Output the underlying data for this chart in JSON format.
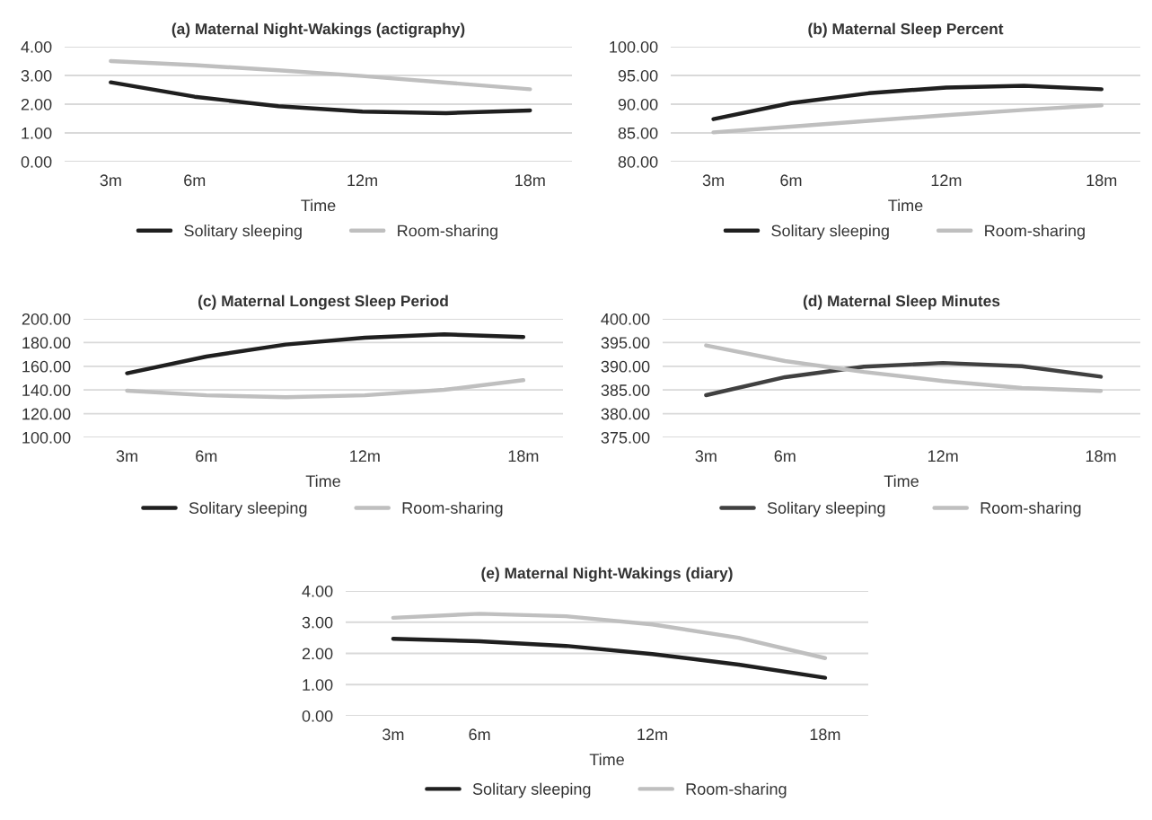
{
  "chart_data": [
    {
      "type": "line",
      "title": "(a) Maternal Night-Wakings (actigraphy)",
      "xlabel": "Time",
      "categories": [
        "3m",
        "6m",
        null,
        "12m",
        null,
        "18m"
      ],
      "ylim": [
        0,
        4
      ],
      "yticks": [
        {
          "value": 0,
          "label": "0.00"
        },
        {
          "value": 1,
          "label": "1.00"
        },
        {
          "value": 2,
          "label": "2.00"
        },
        {
          "value": 3,
          "label": "3.00"
        },
        {
          "value": 4,
          "label": "4.00"
        }
      ],
      "grid": "y",
      "legend": "bottom",
      "line_style": "solid",
      "series": [
        {
          "name": "Solitary sleeping",
          "color": "#1f1f1f",
          "values": [
            2.76,
            2.26,
            1.93,
            1.74,
            1.69,
            1.78
          ]
        },
        {
          "name": "Room-sharing",
          "color": "#bfbfbf",
          "values": [
            3.5,
            3.36,
            3.18,
            2.98,
            2.75,
            2.52
          ]
        }
      ]
    },
    {
      "type": "line",
      "title": "(b) Maternal Sleep Percent",
      "xlabel": "Time",
      "categories": [
        "3m",
        "6m",
        null,
        "12m",
        null,
        "18m"
      ],
      "ylim": [
        80,
        100
      ],
      "yticks": [
        {
          "value": 80,
          "label": "80.00"
        },
        {
          "value": 85,
          "label": "85.00"
        },
        {
          "value": 90,
          "label": "90.00"
        },
        {
          "value": 95,
          "label": "95.00"
        },
        {
          "value": 100,
          "label": "100.00"
        }
      ],
      "grid": "y",
      "legend": "bottom",
      "line_style": "solid",
      "series": [
        {
          "name": "Solitary sleeping",
          "color": "#1f1f1f",
          "values": [
            87.4,
            90.2,
            91.9,
            92.9,
            93.2,
            92.6
          ]
        },
        {
          "name": "Room-sharing",
          "color": "#bfbfbf",
          "values": [
            85.1,
            86.1,
            87.1,
            88.1,
            89.0,
            89.8
          ]
        }
      ]
    },
    {
      "type": "line",
      "title": "(c) Maternal Longest Sleep Period",
      "xlabel": "Time",
      "categories": [
        "3m",
        "6m",
        null,
        "12m",
        null,
        "18m"
      ],
      "ylim": [
        100,
        200
      ],
      "yticks": [
        {
          "value": 100,
          "label": "100.00"
        },
        {
          "value": 120,
          "label": "120.00"
        },
        {
          "value": 140,
          "label": "140.00"
        },
        {
          "value": 160,
          "label": "160.00"
        },
        {
          "value": 180,
          "label": "180.00"
        },
        {
          "value": 200,
          "label": "200.00"
        }
      ],
      "grid": "y",
      "legend": "bottom",
      "line_style": "solid",
      "series": [
        {
          "name": "Solitary sleeping",
          "color": "#1f1f1f",
          "values": [
            154.1,
            168.2,
            178.3,
            184.1,
            186.9,
            184.7
          ]
        },
        {
          "name": "Room-sharing",
          "color": "#bfbfbf",
          "values": [
            139.4,
            135.5,
            133.9,
            135.5,
            140.1,
            148.3
          ]
        }
      ]
    },
    {
      "type": "line",
      "title": "(d) Maternal Sleep Minutes",
      "xlabel": "Time",
      "categories": [
        "3m",
        "6m",
        null,
        "12m",
        null,
        "18m"
      ],
      "ylim": [
        375,
        400
      ],
      "yticks": [
        {
          "value": 375,
          "label": "375.00"
        },
        {
          "value": 380,
          "label": "380.00"
        },
        {
          "value": 385,
          "label": "385.00"
        },
        {
          "value": 390,
          "label": "390.00"
        },
        {
          "value": 395,
          "label": "395.00"
        },
        {
          "value": 400,
          "label": "400.00"
        }
      ],
      "grid": "y",
      "legend": "bottom",
      "line_style": "solid",
      "series": [
        {
          "name": "Solitary sleeping",
          "color": "#404040",
          "values": [
            383.9,
            387.7,
            389.9,
            390.7,
            390.0,
            387.8
          ]
        },
        {
          "name": "Room-sharing",
          "color": "#bfbfbf",
          "values": [
            394.4,
            391.1,
            388.8,
            386.9,
            385.4,
            384.8
          ]
        }
      ]
    },
    {
      "type": "line",
      "title": "(e) Maternal Night-Wakings (diary)",
      "xlabel": "Time",
      "categories": [
        "3m",
        "6m",
        null,
        "12m",
        null,
        "18m"
      ],
      "ylim": [
        0,
        4
      ],
      "yticks": [
        {
          "value": 0,
          "label": "0.00"
        },
        {
          "value": 1,
          "label": "1.00"
        },
        {
          "value": 2,
          "label": "2.00"
        },
        {
          "value": 3,
          "label": "3.00"
        },
        {
          "value": 4,
          "label": "4.00"
        }
      ],
      "grid": "y",
      "legend": "bottom",
      "line_style": "solid",
      "series": [
        {
          "name": "Solitary sleeping",
          "color": "#1f1f1f",
          "values": [
            2.47,
            2.39,
            2.24,
            1.98,
            1.64,
            1.22
          ]
        },
        {
          "name": "Room-sharing",
          "color": "#bfbfbf",
          "values": [
            3.14,
            3.27,
            3.19,
            2.93,
            2.5,
            1.85
          ]
        }
      ]
    }
  ]
}
